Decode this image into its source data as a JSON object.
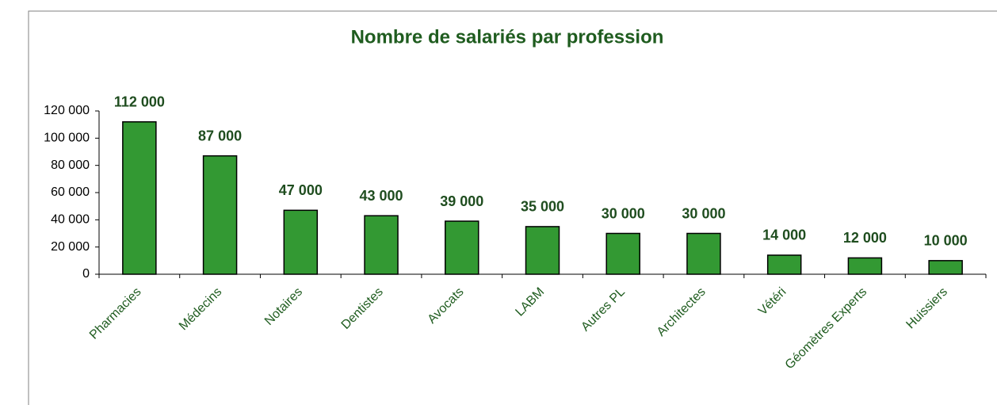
{
  "chart_data": {
    "type": "bar",
    "title": "Nombre de salariés par profession",
    "categories": [
      "Pharmacies",
      "Médecins",
      "Notaires",
      "Dentistes",
      "Avocats",
      "LABM",
      "Autres PL",
      "Architectes",
      "Vétéri",
      "Géomètres Experts",
      "Huissiers"
    ],
    "values": [
      112000,
      87000,
      47000,
      43000,
      39000,
      35000,
      30000,
      30000,
      14000,
      12000,
      10000
    ],
    "value_labels": [
      "112 000",
      "87 000",
      "47 000",
      "43 000",
      "39 000",
      "35 000",
      "30 000",
      "30 000",
      "14 000",
      "12 000",
      "10 000"
    ],
    "color": "#339933",
    "ylim": [
      0,
      120000
    ],
    "yticks": [
      0,
      {
        "value": 20000,
        "label": "20 000"
      },
      {
        "value": 40000,
        "label": "40 000"
      },
      {
        "value": 60000,
        "label": "60 000"
      },
      {
        "value": 80000,
        "label": "80 000"
      },
      {
        "value": 100000,
        "label": "100 000"
      },
      {
        "value": 120000,
        "label": "120 000"
      }
    ]
  }
}
